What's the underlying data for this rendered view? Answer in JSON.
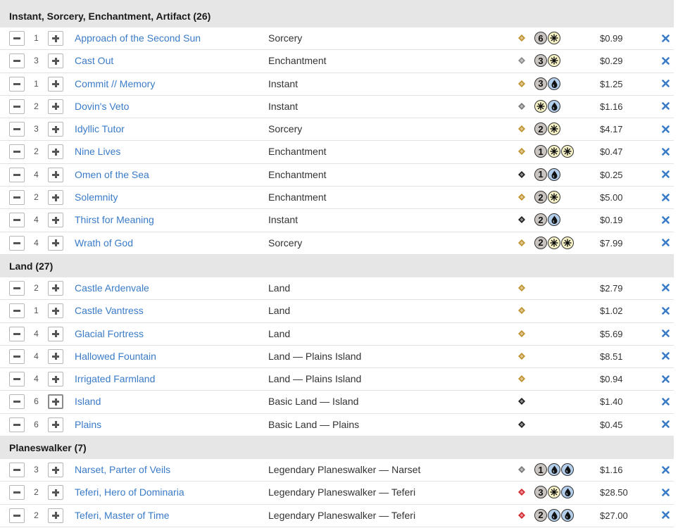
{
  "sections": [
    {
      "title": "Instant, Sorcery, Enchantment, Artifact (26)",
      "rows": [
        {
          "qty": "1",
          "name": "Approach of the Second Sun",
          "type": "Sorcery",
          "set_icon": "set-amonkhet-icon",
          "set_color": "#c0922e",
          "mana": [
            {
              "k": "g",
              "v": "6"
            },
            {
              "k": "w"
            }
          ],
          "price": "$0.99"
        },
        {
          "qty": "3",
          "name": "Cast Out",
          "type": "Enchantment",
          "set_icon": "set-amonkhet-icon",
          "set_color": "#8a8a8a",
          "mana": [
            {
              "k": "g",
              "v": "3"
            },
            {
              "k": "w"
            }
          ],
          "price": "$0.29"
        },
        {
          "qty": "1",
          "name": "Commit // Memory",
          "type": "Instant",
          "set_icon": "set-amonkhet-icon",
          "set_color": "#c0922e",
          "mana": [
            {
              "k": "g",
              "v": "3"
            },
            {
              "k": "u"
            }
          ],
          "price": "$1.25"
        },
        {
          "qty": "2",
          "name": "Dovin's Veto",
          "type": "Instant",
          "set_icon": "set-war-icon",
          "set_color": "#7a7a7a",
          "mana": [
            {
              "k": "w"
            },
            {
              "k": "u"
            }
          ],
          "price": "$1.16"
        },
        {
          "qty": "3",
          "name": "Idyllic Tutor",
          "type": "Sorcery",
          "set_icon": "set-theros-icon",
          "set_color": "#c0922e",
          "mana": [
            {
              "k": "g",
              "v": "2"
            },
            {
              "k": "w"
            }
          ],
          "price": "$4.17"
        },
        {
          "qty": "2",
          "name": "Nine Lives",
          "type": "Enchantment",
          "set_icon": "set-masters-icon",
          "set_color": "#c0922e",
          "mana": [
            {
              "k": "g",
              "v": "1"
            },
            {
              "k": "w"
            },
            {
              "k": "w"
            }
          ],
          "price": "$0.47"
        },
        {
          "qty": "4",
          "name": "Omen of the Sea",
          "type": "Enchantment",
          "set_icon": "set-theros-icon",
          "set_color": "#222222",
          "mana": [
            {
              "k": "g",
              "v": "1"
            },
            {
              "k": "u"
            }
          ],
          "price": "$0.25"
        },
        {
          "qty": "2",
          "name": "Solemnity",
          "type": "Enchantment",
          "set_icon": "set-amonkhet-icon",
          "set_color": "#c0922e",
          "mana": [
            {
              "k": "g",
              "v": "2"
            },
            {
              "k": "w"
            }
          ],
          "price": "$5.00"
        },
        {
          "qty": "4",
          "name": "Thirst for Meaning",
          "type": "Instant",
          "set_icon": "set-theros-icon",
          "set_color": "#222222",
          "mana": [
            {
              "k": "g",
              "v": "2"
            },
            {
              "k": "u"
            }
          ],
          "price": "$0.19"
        },
        {
          "qty": "4",
          "name": "Wrath of God",
          "type": "Sorcery",
          "set_icon": "set-m10-icon",
          "set_color": "#c0922e",
          "mana": [
            {
              "k": "g",
              "v": "2"
            },
            {
              "k": "w"
            },
            {
              "k": "w"
            }
          ],
          "price": "$7.99"
        }
      ]
    },
    {
      "title": "Land (27)",
      "rows": [
        {
          "qty": "2",
          "name": "Castle Ardenvale",
          "type": "Land",
          "set_icon": "set-eldraine-icon",
          "set_color": "#c0922e",
          "mana": [],
          "price": "$2.79"
        },
        {
          "qty": "1",
          "name": "Castle Vantress",
          "type": "Land",
          "set_icon": "set-eldraine-icon",
          "set_color": "#c0922e",
          "mana": [],
          "price": "$1.02"
        },
        {
          "qty": "4",
          "name": "Glacial Fortress",
          "type": "Land",
          "set_icon": "set-core-icon",
          "set_color": "#c0922e",
          "mana": [],
          "price": "$5.69"
        },
        {
          "qty": "4",
          "name": "Hallowed Fountain",
          "type": "Land — Plains Island",
          "set_icon": "set-ravnica-icon",
          "set_color": "#c0922e",
          "mana": [],
          "price": "$8.51"
        },
        {
          "qty": "4",
          "name": "Irrigated Farmland",
          "type": "Land — Plains Island",
          "set_icon": "set-amonkhet-icon",
          "set_color": "#c0922e",
          "mana": [],
          "price": "$0.94"
        },
        {
          "qty": "6",
          "name": "Island",
          "type": "Basic Land — Island",
          "set_icon": "set-basic-icon",
          "set_color": "#222222",
          "mana": [],
          "price": "$1.40",
          "focused": true
        },
        {
          "qty": "6",
          "name": "Plains",
          "type": "Basic Land — Plains",
          "set_icon": "set-basic-icon",
          "set_color": "#222222",
          "mana": [],
          "price": "$0.45"
        }
      ]
    },
    {
      "title": "Planeswalker (7)",
      "rows": [
        {
          "qty": "3",
          "name": "Narset, Parter of Veils",
          "type": "Legendary Planeswalker — Narset",
          "set_icon": "set-war-icon",
          "set_color": "#7a7a7a",
          "mana": [
            {
              "k": "g",
              "v": "1"
            },
            {
              "k": "u"
            },
            {
              "k": "u"
            }
          ],
          "price": "$1.16"
        },
        {
          "qty": "2",
          "name": "Teferi, Hero of Dominaria",
          "type": "Legendary Planeswalker — Teferi",
          "set_icon": "set-dominaria-icon",
          "set_color": "#d4292f",
          "mana": [
            {
              "k": "g",
              "v": "3"
            },
            {
              "k": "w"
            },
            {
              "k": "u"
            }
          ],
          "price": "$28.50"
        },
        {
          "qty": "2",
          "name": "Teferi, Master of Time",
          "type": "Legendary Planeswalker — Teferi",
          "set_icon": "set-m21-icon",
          "set_color": "#d4292f",
          "mana": [
            {
              "k": "g",
              "v": "2"
            },
            {
              "k": "u"
            },
            {
              "k": "u"
            }
          ],
          "price": "$27.00"
        }
      ]
    }
  ],
  "icons": {
    "minus": "minus-icon",
    "plus": "plus-icon",
    "remove": "close-icon",
    "remove_color": "#3a7bc8",
    "link_color": "#3a7bc8"
  }
}
